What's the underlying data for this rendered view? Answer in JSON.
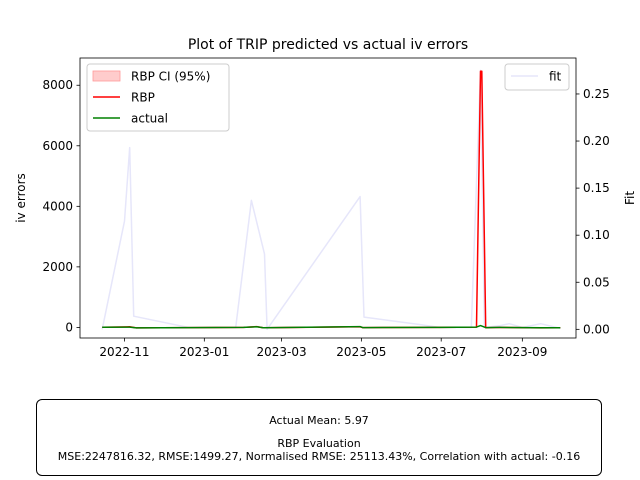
{
  "chart_data": {
    "type": "line",
    "title": "Plot of TRIP predicted vs actual iv errors",
    "ylabel": "iv errors",
    "ylabel_right": "Fit",
    "ylim": [
      -350,
      8900
    ],
    "ylim_right": [
      -0.0092,
      0.2882
    ],
    "y_ticks": [
      0,
      2000,
      4000,
      6000,
      8000
    ],
    "y_tick_labels": [
      "0",
      "2000",
      "4000",
      "6000",
      "8000"
    ],
    "y_right_ticks": [
      0.0,
      0.05,
      0.1,
      0.15,
      0.2,
      0.25
    ],
    "y_right_tick_labels": [
      "0.00",
      "0.05",
      "0.10",
      "0.15",
      "0.20",
      "0.25"
    ],
    "x_range": [
      "2022-09-28",
      "2023-10-12"
    ],
    "x_ticks": [
      "2022-11-01",
      "2023-01-01",
      "2023-03-01",
      "2023-05-01",
      "2023-07-01",
      "2023-09-01"
    ],
    "x_tick_labels": [
      "2022-11",
      "2023-01",
      "2023-03",
      "2023-05",
      "2023-07",
      "2023-09"
    ],
    "legend_left": {
      "placement": "upper left",
      "entries": [
        "RBP CI (95%)",
        "RBP",
        "actual"
      ]
    },
    "legend_right": {
      "placement": "upper right",
      "entries": [
        "fit"
      ]
    },
    "colors": {
      "rbp": "#ff0000",
      "ci": "#ffcccc",
      "actual": "#008000",
      "fit": "#e6e6fa"
    },
    "series": [
      {
        "name": "RBP",
        "axis": "left",
        "x": [
          "2022-10-15",
          "2022-11-05",
          "2022-11-10",
          "2023-01-31",
          "2023-02-10",
          "2023-02-15",
          "2023-04-30",
          "2023-05-02",
          "2023-06-30",
          "2023-07-28",
          "2023-07-31",
          "2023-08-01",
          "2023-08-04",
          "2023-08-15",
          "2023-09-15",
          "2023-09-30"
        ],
        "y": [
          5,
          20,
          -15,
          0,
          25,
          -10,
          20,
          -5,
          0,
          10,
          8460,
          8460,
          -10,
          0,
          -15,
          -10
        ]
      },
      {
        "name": "actual",
        "axis": "left",
        "x": [
          "2022-10-15",
          "2022-11-05",
          "2022-11-10",
          "2023-01-31",
          "2023-02-10",
          "2023-02-15",
          "2023-04-30",
          "2023-05-02",
          "2023-06-30",
          "2023-07-28",
          "2023-07-31",
          "2023-08-04",
          "2023-08-15",
          "2023-09-15",
          "2023-09-30"
        ],
        "y": [
          5,
          10,
          -15,
          0,
          20,
          -10,
          25,
          -5,
          0,
          10,
          60,
          -5,
          0,
          -10,
          -10
        ]
      },
      {
        "name": "fit",
        "axis": "right",
        "x": [
          "2022-10-15",
          "2022-11-01",
          "2022-11-05",
          "2022-11-08",
          "2022-12-20",
          "2023-01-25",
          "2023-02-06",
          "2023-02-16",
          "2023-02-18",
          "2023-04-30",
          "2023-05-03",
          "2023-06-15",
          "2023-06-30",
          "2023-07-24",
          "2023-07-31",
          "2023-08-03",
          "2023-08-15",
          "2023-08-22",
          "2023-09-01",
          "2023-09-15",
          "2023-09-30"
        ],
        "y": [
          0.0,
          0.115,
          0.193,
          0.014,
          0.002,
          0.002,
          0.137,
          0.08,
          0.0,
          0.141,
          0.013,
          0.005,
          0.002,
          0.002,
          0.275,
          0.002,
          0.004,
          0.006,
          0.002,
          0.006,
          0.001
        ]
      },
      {
        "name": "RBP CI (95%)",
        "axis": "left",
        "x": [],
        "y_low": [],
        "y_high": []
      }
    ]
  },
  "evaluation_box": {
    "actual_mean": "Actual Mean: 5.97",
    "heading": "RBP Evaluation",
    "metrics": "MSE:2247816.32, RMSE:1499.27, Normalised RMSE: 25113.43%, Correlation with actual: -0.16"
  }
}
